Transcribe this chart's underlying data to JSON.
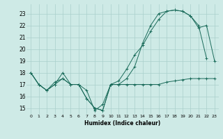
{
  "xlabel": "Humidex (Indice chaleur)",
  "bg_color": "#ceeae6",
  "grid_color": "#aacfcb",
  "line_color": "#1a6b5a",
  "xlim": [
    -0.5,
    23.5
  ],
  "ylim": [
    14.5,
    23.8
  ],
  "yticks": [
    15,
    16,
    17,
    18,
    19,
    20,
    21,
    22,
    23
  ],
  "xticks": [
    0,
    1,
    2,
    3,
    4,
    5,
    6,
    7,
    8,
    9,
    10,
    11,
    12,
    13,
    14,
    15,
    16,
    17,
    18,
    19,
    20,
    21,
    22,
    23
  ],
  "series1_x": [
    0,
    1,
    2,
    3,
    4,
    5,
    6,
    7,
    8,
    9,
    10,
    11,
    12,
    13,
    14,
    15,
    16,
    17,
    18,
    19,
    20,
    21,
    22,
    23
  ],
  "series1_y": [
    18.0,
    17.0,
    16.5,
    17.0,
    18.0,
    17.0,
    17.0,
    16.5,
    14.8,
    15.3,
    17.0,
    17.0,
    17.0,
    17.0,
    17.0,
    17.0,
    17.0,
    17.2,
    17.3,
    17.4,
    17.5,
    17.5,
    17.5,
    17.5
  ],
  "series2_x": [
    0,
    1,
    2,
    3,
    4,
    5,
    6,
    7,
    8,
    9,
    10,
    11,
    12,
    13,
    14,
    15,
    16,
    17,
    18,
    19,
    20,
    21,
    22
  ],
  "series2_y": [
    18.0,
    17.0,
    16.5,
    17.2,
    17.5,
    17.0,
    17.0,
    15.8,
    15.0,
    14.8,
    17.0,
    17.3,
    18.3,
    19.5,
    20.3,
    21.5,
    22.5,
    23.2,
    23.3,
    23.2,
    22.8,
    22.0,
    19.2
  ],
  "series3_x": [
    0,
    1,
    2,
    3,
    4,
    5,
    6,
    7,
    8,
    9,
    10,
    11,
    12,
    13,
    14,
    15,
    16,
    17,
    18,
    19,
    20,
    21,
    22,
    23
  ],
  "series3_y": [
    18.0,
    17.0,
    16.5,
    17.0,
    17.5,
    17.0,
    17.0,
    15.8,
    15.0,
    14.8,
    17.0,
    17.0,
    17.5,
    18.5,
    20.5,
    22.0,
    23.0,
    23.2,
    23.3,
    23.2,
    22.8,
    21.8,
    22.0,
    19.0
  ]
}
